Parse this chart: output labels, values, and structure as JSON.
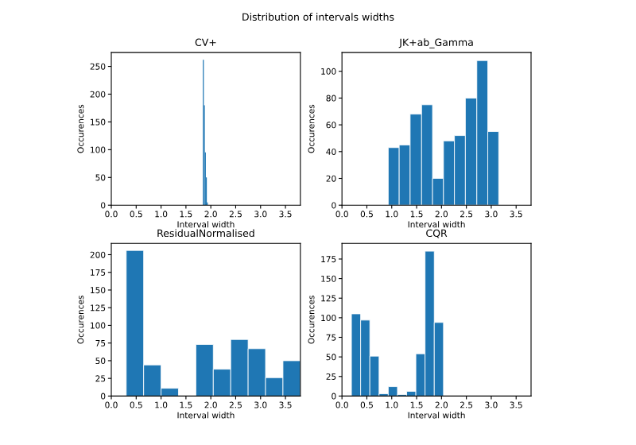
{
  "chart_data": [
    {
      "type": "histogram",
      "title": "CV+",
      "annotations": [
        "Distribution of intervals widths"
      ],
      "xlabel": "Interval width",
      "ylabel": "Occurences",
      "bins": [
        1.84,
        1.86,
        1.88,
        1.9,
        1.92,
        1.94
      ],
      "values": [
        262,
        180,
        95,
        50,
        5
      ],
      "color": "#1f77b4",
      "xlim": [
        0,
        3.8
      ],
      "xticks": [
        {
          "value": 0,
          "label": "0.0"
        },
        0.5,
        {
          "value": 1,
          "label": "1.0"
        },
        1.5,
        {
          "value": 2,
          "label": "2.0"
        },
        2.5,
        {
          "value": 3,
          "label": "3.0"
        },
        3.5
      ],
      "ylim": [
        0,
        275
      ],
      "yticks": [
        0,
        50,
        100,
        150,
        200,
        250
      ]
    },
    {
      "type": "histogram",
      "title": "JK+ab_Gamma",
      "xlabel": "Interval width",
      "ylabel": "Occurences",
      "bins": [
        0.93,
        1.15,
        1.37,
        1.6,
        1.82,
        2.04,
        2.26,
        2.48,
        2.71,
        2.93,
        3.15
      ],
      "values": [
        43,
        45,
        68,
        75,
        20,
        48,
        52,
        80,
        108,
        55
      ],
      "color": "#1f77b4",
      "xlim": [
        0,
        3.8
      ],
      "xticks": [
        {
          "value": 0,
          "label": "0.0"
        },
        0.5,
        {
          "value": 1,
          "label": "1.0"
        },
        1.5,
        {
          "value": 2,
          "label": "2.0"
        },
        2.5,
        {
          "value": 3,
          "label": "3.0"
        },
        3.5
      ],
      "ylim": [
        0,
        114
      ],
      "yticks": [
        0,
        20,
        40,
        60,
        80,
        100
      ]
    },
    {
      "type": "histogram",
      "title": "ResidualNormalised",
      "xlabel": "Interval width",
      "ylabel": "Occurences",
      "bins": [
        0.3,
        0.65,
        1.0,
        1.35,
        1.7,
        2.05,
        2.4,
        2.75,
        3.1,
        3.45,
        3.8
      ],
      "values": [
        206,
        44,
        11,
        0,
        73,
        38,
        80,
        67,
        26,
        50
      ],
      "color": "#1f77b4",
      "xlim": [
        0,
        3.8
      ],
      "xticks": [
        {
          "value": 0,
          "label": "0.0"
        },
        0.5,
        {
          "value": 1,
          "label": "1.0"
        },
        1.5,
        {
          "value": 2,
          "label": "2.0"
        },
        2.5,
        {
          "value": 3,
          "label": "3.0"
        },
        3.5
      ],
      "ylim": [
        0,
        216
      ],
      "yticks": [
        0,
        25,
        50,
        75,
        100,
        125,
        150,
        175,
        200
      ]
    },
    {
      "type": "histogram",
      "title": "CQR",
      "xlabel": "Interval width",
      "ylabel": "Occurences",
      "bins": [
        0.19,
        0.375,
        0.56,
        0.745,
        0.93,
        1.115,
        1.3,
        1.485,
        1.67,
        1.855,
        2.04
      ],
      "values": [
        105,
        97,
        51,
        3,
        12,
        2,
        6,
        54,
        185,
        94
      ],
      "color": "#1f77b4",
      "xlim": [
        0,
        3.8
      ],
      "xticks": [
        {
          "value": 0,
          "label": "0.0"
        },
        0.5,
        {
          "value": 1,
          "label": "1.0"
        },
        1.5,
        {
          "value": 2,
          "label": "2.0"
        },
        2.5,
        {
          "value": 3,
          "label": "3.0"
        },
        3.5
      ],
      "ylim": [
        0,
        195
      ],
      "yticks": [
        0,
        25,
        50,
        75,
        100,
        125,
        150,
        175
      ]
    }
  ]
}
